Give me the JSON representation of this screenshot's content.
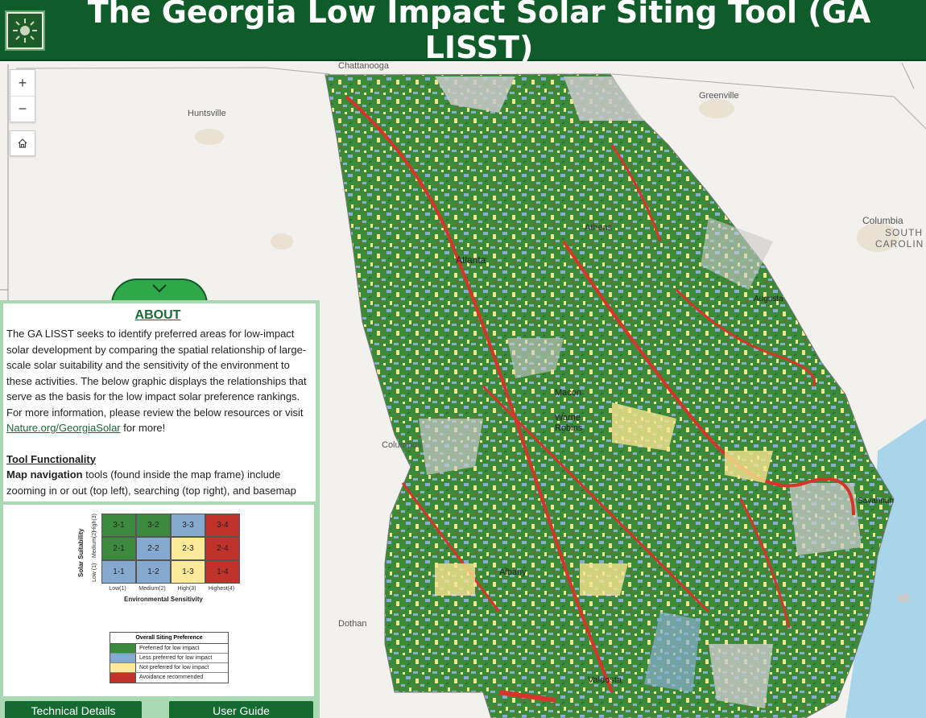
{
  "header": {
    "title": "The Georgia Low Impact Solar Siting Tool (GA LISST)"
  },
  "map": {
    "controls": {
      "zoom_in": "+",
      "zoom_out": "−"
    },
    "cities": {
      "chattanooga": "Chattanooga",
      "huntsville": "Huntsville",
      "greenville": "Greenville",
      "columbia": "Columbia",
      "south_carolina_1": "SOUTH",
      "south_carolina_2": "CAROLIN",
      "athens": "Athens",
      "atlanta": "Atlanta",
      "augusta": "Augusta",
      "macon": "Macon",
      "warner_1": "Warne",
      "warner_2": "Robins",
      "columbus": "Columbus",
      "savannah": "Savannah",
      "albany": "Albany",
      "dothan": "Dothan",
      "valdosta": "Valdosta"
    }
  },
  "panel": {
    "about_title": "ABOUT",
    "about_text_1": "The GA LISST seeks to identify preferred areas for low-impact solar development by comparing the spatial relationship of large-scale solar suitability and the sensitivity of the environment to these activities. The below graphic displays the relationships that serve as the basis for the low impact solar preference rankings. For more information, please review the below resources or visit ",
    "about_link": "Nature.org/GeorgiaSolar",
    "about_text_2": " for more!",
    "tool_heading": "Tool Functionality",
    "nav_bold": "Map navigation",
    "nav_text": " tools (found inside the map frame) include zooming in or out (top left), searching (top right), and basemap",
    "tech_button": "Technical Details",
    "guide_button": "User Guide"
  },
  "matrix": {
    "y_title": "Solar Suitability",
    "x_title": "Environmental Sensitivity",
    "y_labels": [
      "High(3)",
      "Medium(2)",
      "Low (1)"
    ],
    "x_labels": [
      "Low(1)",
      "Medium(2)",
      "High(3)",
      "Highest(4)"
    ],
    "rows": [
      [
        "3-1",
        "3-2",
        "3-3",
        "3-4"
      ],
      [
        "2-1",
        "2-2",
        "2-3",
        "2-4"
      ],
      [
        "1-1",
        "1-2",
        "1-3",
        "1-4"
      ]
    ],
    "colors": {
      "green": "#3b8a3e",
      "blue": "#86a9cf",
      "yellow": "#fde99a",
      "red": "#c1322b"
    }
  },
  "legend": {
    "title": "Overall Siting Preference",
    "items": [
      "Preferred for low impact",
      "Less preferred for low impact",
      "Not preferred for low impact",
      "Avoidance recommended"
    ]
  }
}
